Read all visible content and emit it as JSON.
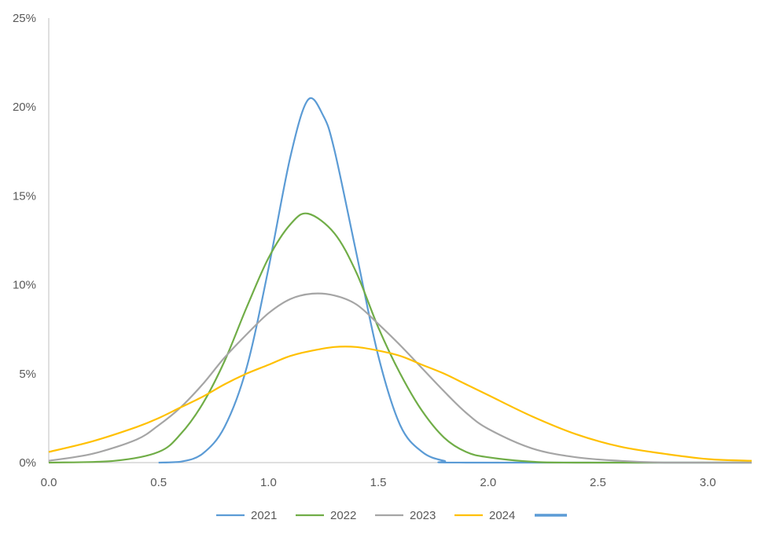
{
  "chart_data": {
    "type": "line",
    "x_ticks": [
      "0.0",
      "0.5",
      "1.0",
      "1.5",
      "2.0",
      "2.5",
      "3.0"
    ],
    "y_ticks": [
      "0%",
      "5%",
      "10%",
      "15%",
      "20%",
      "25%"
    ],
    "xlim": [
      0,
      3.2
    ],
    "ylim": [
      0,
      25
    ],
    "grid": false,
    "legend_position": "bottom",
    "series": [
      {
        "name": "2021",
        "color": "#5b9bd5",
        "points": [
          [
            0.5,
            0.0
          ],
          [
            0.6,
            0.05
          ],
          [
            0.7,
            0.5
          ],
          [
            0.8,
            2.0
          ],
          [
            0.9,
            5.3
          ],
          [
            1.0,
            10.9
          ],
          [
            1.1,
            17.2
          ],
          [
            1.18,
            20.4
          ],
          [
            1.25,
            19.5
          ],
          [
            1.3,
            17.6
          ],
          [
            1.4,
            11.8
          ],
          [
            1.5,
            6.0
          ],
          [
            1.6,
            2.1
          ],
          [
            1.7,
            0.6
          ],
          [
            1.8,
            0.1
          ],
          [
            1.9,
            0.0
          ],
          [
            3.2,
            0.0
          ]
        ]
      },
      {
        "name": "2022",
        "color": "#70ad47",
        "points": [
          [
            0.0,
            0.0
          ],
          [
            0.3,
            0.1
          ],
          [
            0.5,
            0.6
          ],
          [
            0.6,
            1.6
          ],
          [
            0.7,
            3.3
          ],
          [
            0.8,
            5.7
          ],
          [
            0.9,
            8.7
          ],
          [
            1.0,
            11.5
          ],
          [
            1.1,
            13.4
          ],
          [
            1.18,
            14.0
          ],
          [
            1.3,
            12.9
          ],
          [
            1.4,
            10.7
          ],
          [
            1.5,
            7.6
          ],
          [
            1.6,
            5.0
          ],
          [
            1.7,
            2.9
          ],
          [
            1.8,
            1.4
          ],
          [
            1.9,
            0.6
          ],
          [
            2.0,
            0.3
          ],
          [
            2.2,
            0.05
          ],
          [
            2.4,
            0.0
          ],
          [
            3.2,
            0.0
          ]
        ]
      },
      {
        "name": "2023",
        "color": "#a5a5a5",
        "points": [
          [
            0.0,
            0.1
          ],
          [
            0.2,
            0.5
          ],
          [
            0.4,
            1.3
          ],
          [
            0.5,
            2.1
          ],
          [
            0.6,
            3.1
          ],
          [
            0.7,
            4.4
          ],
          [
            0.8,
            5.9
          ],
          [
            0.9,
            7.2
          ],
          [
            1.0,
            8.4
          ],
          [
            1.1,
            9.2
          ],
          [
            1.2,
            9.5
          ],
          [
            1.3,
            9.4
          ],
          [
            1.4,
            8.9
          ],
          [
            1.5,
            7.8
          ],
          [
            1.6,
            6.6
          ],
          [
            1.7,
            5.3
          ],
          [
            1.8,
            4.0
          ],
          [
            1.9,
            2.8
          ],
          [
            2.0,
            1.9
          ],
          [
            2.2,
            0.8
          ],
          [
            2.4,
            0.3
          ],
          [
            2.6,
            0.1
          ],
          [
            2.8,
            0.0
          ],
          [
            3.2,
            0.0
          ]
        ]
      },
      {
        "name": "2024",
        "color": "#ffc000",
        "points": [
          [
            0.0,
            0.6
          ],
          [
            0.2,
            1.2
          ],
          [
            0.4,
            2.0
          ],
          [
            0.5,
            2.5
          ],
          [
            0.6,
            3.1
          ],
          [
            0.7,
            3.7
          ],
          [
            0.8,
            4.4
          ],
          [
            0.9,
            5.0
          ],
          [
            1.0,
            5.5
          ],
          [
            1.1,
            6.0
          ],
          [
            1.2,
            6.3
          ],
          [
            1.3,
            6.5
          ],
          [
            1.4,
            6.5
          ],
          [
            1.5,
            6.3
          ],
          [
            1.6,
            6.0
          ],
          [
            1.7,
            5.5
          ],
          [
            1.8,
            5.0
          ],
          [
            1.9,
            4.4
          ],
          [
            2.0,
            3.8
          ],
          [
            2.2,
            2.6
          ],
          [
            2.4,
            1.6
          ],
          [
            2.6,
            0.9
          ],
          [
            2.8,
            0.5
          ],
          [
            3.0,
            0.2
          ],
          [
            3.2,
            0.1
          ]
        ]
      }
    ],
    "extra_legend_entry": {
      "color": "#5b9bd5",
      "label": ""
    }
  }
}
